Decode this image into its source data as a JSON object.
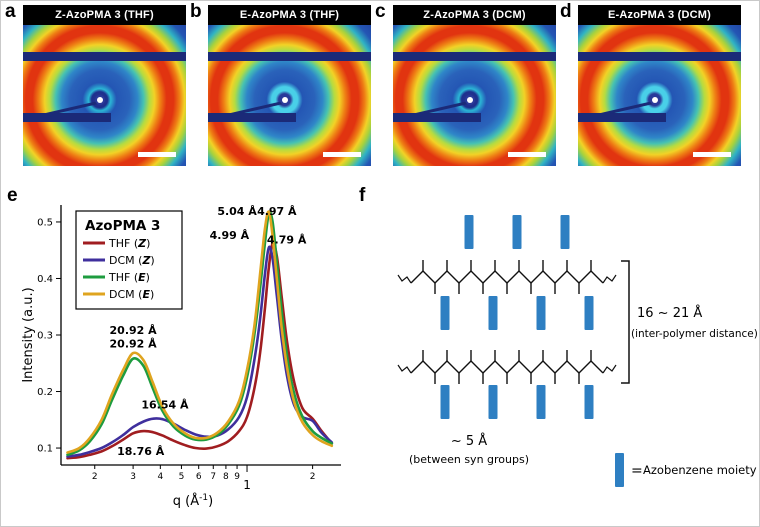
{
  "panels": [
    {
      "letter": "a",
      "title": "Z-AzoPMA 3 (THF)"
    },
    {
      "letter": "b",
      "title": "E-AzoPMA 3 (THF)"
    },
    {
      "letter": "c",
      "title": "Z-AzoPMA 3 (DCM)"
    },
    {
      "letter": "d",
      "title": "E-AzoPMA 3 (DCM)"
    }
  ],
  "panel_e": {
    "letter": "e"
  },
  "panel_f": {
    "letter": "f"
  },
  "chart_data": {
    "type": "line",
    "title": "",
    "xlabel": "q (Å⁻¹)",
    "xlabel_parts": {
      "base": "q (Å",
      "sup": "-1",
      "end": ")"
    },
    "ylabel": "Intensity (a.u.)",
    "x_scale": "log",
    "grid": false,
    "legend_position": "top-left",
    "legend_title": "AzoPMA 3",
    "xlim": [
      0.14,
      2.7
    ],
    "ylim": [
      0.07,
      0.53
    ],
    "y_ticks": [
      0.1,
      0.2,
      0.3,
      0.4,
      0.5
    ],
    "x_ticks": [
      {
        "q": 0.2,
        "label": "2"
      },
      {
        "q": 0.3,
        "label": "3"
      },
      {
        "q": 0.4,
        "label": "4"
      },
      {
        "q": 0.5,
        "label": "5"
      },
      {
        "q": 0.6,
        "label": "6"
      },
      {
        "q": 0.7,
        "label": "7"
      },
      {
        "q": 0.8,
        "label": "8"
      },
      {
        "q": 0.9,
        "label": "9"
      },
      {
        "q": 1.0,
        "label": "1",
        "major": true
      },
      {
        "q": 2.0,
        "label": "2"
      }
    ],
    "x": [
      0.15,
      0.17,
      0.19,
      0.215,
      0.24,
      0.27,
      0.3,
      0.335,
      0.37,
      0.41,
      0.46,
      0.52,
      0.58,
      0.65,
      0.73,
      0.82,
      0.92,
      1.0,
      1.08,
      1.15,
      1.21,
      1.26,
      1.31,
      1.37,
      1.44,
      1.53,
      1.65,
      1.8,
      2.0,
      2.2,
      2.45
    ],
    "series": [
      {
        "name": "THF (Z)",
        "solvent": "THF",
        "isomer": "Z",
        "color": "#a01d20",
        "values": [
          0.082,
          0.084,
          0.088,
          0.094,
          0.103,
          0.115,
          0.126,
          0.13,
          0.128,
          0.122,
          0.113,
          0.105,
          0.1,
          0.099,
          0.103,
          0.112,
          0.13,
          0.155,
          0.205,
          0.27,
          0.35,
          0.42,
          0.462,
          0.44,
          0.37,
          0.285,
          0.215,
          0.17,
          0.152,
          0.13,
          0.108
        ]
      },
      {
        "name": "DCM (Z)",
        "solvent": "DCM",
        "isomer": "Z",
        "color": "#3f2f9d",
        "values": [
          0.085,
          0.088,
          0.093,
          0.1,
          0.11,
          0.123,
          0.137,
          0.147,
          0.152,
          0.151,
          0.143,
          0.132,
          0.124,
          0.12,
          0.122,
          0.133,
          0.155,
          0.19,
          0.255,
          0.33,
          0.41,
          0.455,
          0.435,
          0.37,
          0.295,
          0.225,
          0.175,
          0.155,
          0.148,
          0.127,
          0.11
        ]
      },
      {
        "name": "THF (E)",
        "solvent": "THF",
        "isomer": "E",
        "color": "#1e9c3f",
        "values": [
          0.088,
          0.096,
          0.112,
          0.142,
          0.185,
          0.228,
          0.258,
          0.245,
          0.205,
          0.165,
          0.138,
          0.122,
          0.115,
          0.115,
          0.123,
          0.142,
          0.175,
          0.225,
          0.3,
          0.385,
          0.465,
          0.515,
          0.5,
          0.43,
          0.345,
          0.26,
          0.195,
          0.155,
          0.13,
          0.118,
          0.108
        ]
      },
      {
        "name": "DCM (E)",
        "solvent": "DCM",
        "isomer": "E",
        "color": "#dfa41f",
        "values": [
          0.092,
          0.1,
          0.118,
          0.15,
          0.195,
          0.238,
          0.268,
          0.255,
          0.215,
          0.172,
          0.143,
          0.126,
          0.118,
          0.118,
          0.127,
          0.147,
          0.183,
          0.238,
          0.315,
          0.41,
          0.49,
          0.518,
          0.475,
          0.4,
          0.315,
          0.24,
          0.18,
          0.145,
          0.123,
          0.112,
          0.104
        ]
      }
    ],
    "draw_order": [
      0,
      1,
      2,
      3
    ],
    "annotations": [
      {
        "text": "5.04 Å",
        "color": "#dfa41f",
        "q": 0.9,
        "intensity": 0.512,
        "anchor": "middle"
      },
      {
        "text": "4.97 Å",
        "color": "#1e9c3f",
        "q": 1.37,
        "intensity": 0.512,
        "anchor": "middle"
      },
      {
        "text": "4.99 Å",
        "color": "#3f2f9d",
        "q": 0.83,
        "intensity": 0.47,
        "anchor": "middle"
      },
      {
        "text": "4.79 Å",
        "color": "#a01d20",
        "q": 1.52,
        "intensity": 0.462,
        "anchor": "middle"
      },
      {
        "text": "20.92 Å",
        "color": "#1e9c3f",
        "q": 0.3,
        "intensity": 0.302,
        "anchor": "middle"
      },
      {
        "text": "20.92 Å",
        "color": "#dfa41f",
        "q": 0.3,
        "intensity": 0.278,
        "anchor": "middle"
      },
      {
        "text": "16.54 Å",
        "color": "#3f2f9d",
        "q": 0.42,
        "intensity": 0.17,
        "anchor": "middle"
      },
      {
        "text": "18.76 Å",
        "color": "#a01d20",
        "q": 0.325,
        "intensity": 0.088,
        "anchor": "middle"
      }
    ]
  },
  "schematic": {
    "bracket_label": "16 ~ 21 Å",
    "bracket_sublabel": "(inter-polymer distance)",
    "spacing_label": "~ 5 Å",
    "spacing_sublabel": "(between syn groups)",
    "legend_equals": "=",
    "legend_label": "Azobenzene moiety",
    "azobenzene_color": "#2e7fc2"
  }
}
